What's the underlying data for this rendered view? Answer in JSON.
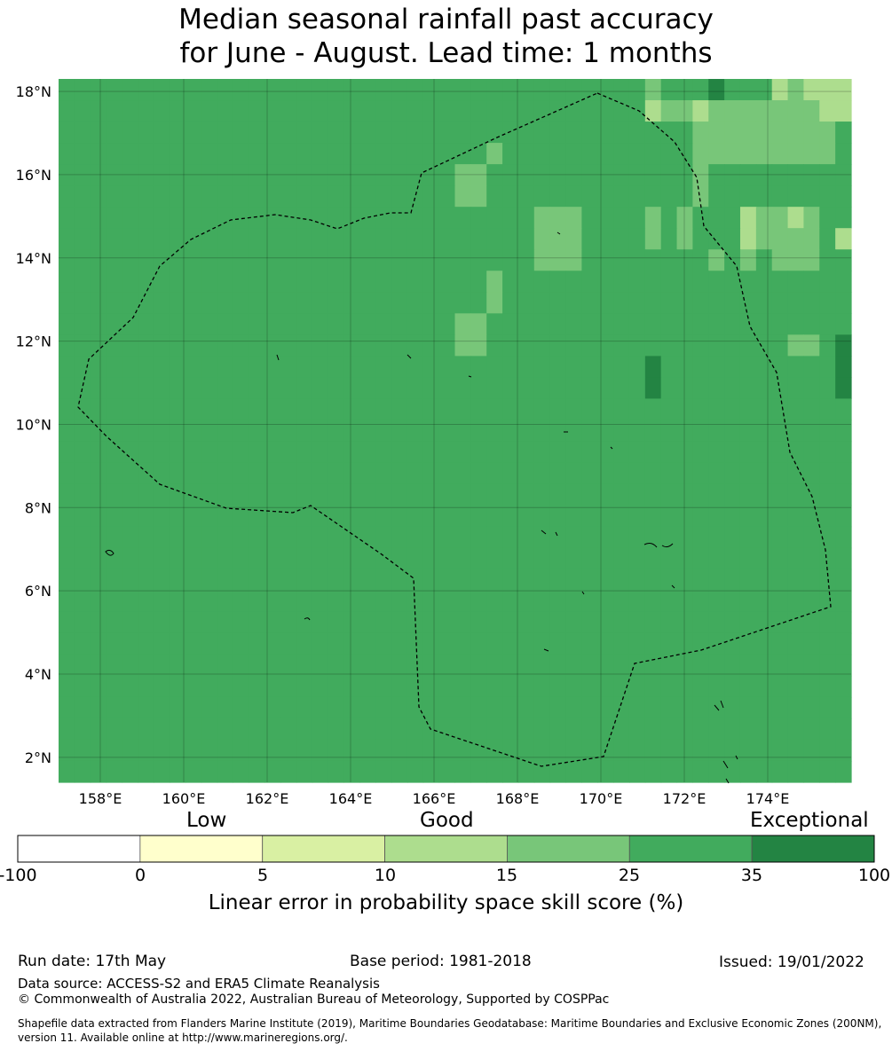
{
  "title": {
    "line1": "Median seasonal rainfall past accuracy",
    "line2": "for June - August. Lead time: 1 months"
  },
  "map": {
    "lat_labels": [
      "18°N",
      "16°N",
      "14°N",
      "12°N",
      "10°N",
      "8°N",
      "6°N",
      "4°N",
      "2°N"
    ],
    "lon_labels": [
      "158°E",
      "160°E",
      "162°E",
      "164°E",
      "166°E",
      "168°E",
      "170°E",
      "172°E",
      "174°E"
    ],
    "lat_range": [
      1.4,
      18.3
    ],
    "lon_range": [
      157.0,
      176.0
    ],
    "grid_rows": [
      "44444444444444444444444444444444444443444544423222",
      "44444444444444444444444444444444444442332333333322",
      "44444444444444444444444444444444444444443333333334",
      "44444444444444444444444444434444444444443333333334",
      "44444444444444444444444443344444444444443444444444",
      "44444444444444444444444443344444444444443444444444",
      "44444444444444444444444444444433344443434442332344",
      "44444444444444444444444444444433344443434442333342",
      "44444444444444444444444444444433344444444343433344",
      "44444444444444444444444444434444444444444444444444",
      "44444444444444444444444444434444444444444444444444",
      "44444444444444444444444443344444444444444444444444",
      "44444444444444444444444443344444444444444444443345",
      "44444444444444444444444444444444444445444444444445",
      "44444444444444444444444444444444444445444444444445",
      "44444444444444444444444444444444444444444444444444",
      "44444444444444444444444444444444444444444444444444",
      "44444444444444444444444444444444444444444444444444",
      "44444444444444444444444444444444444444444444444444",
      "44444444444444444444444444444444444444444444444444",
      "44444444444444444444444444444444444444444444444444",
      "44444444444444444444444444444444444444444444444444",
      "44444444444444444444444444444444444444444444444444",
      "44444444444444444444444444444444444444444444444444",
      "44444444444444444444444444444444444444444444444444",
      "44444444444444444444444444444444444444444444444444",
      "44444444444444444444444444444444444444444444444444",
      "44444444444444444444444444444444444444444444444444",
      "44444444444444444444444444444444444444444444444444",
      "44444444444444444444444444444444444444444444444444",
      "44444444444444444444444444444444444444444444444444",
      "44444444444444444444444444444444444444444444444444",
      "44444444444444444444444444444444444444444444444444"
    ]
  },
  "colorbar": {
    "word_low": "Low",
    "word_good": "Good",
    "word_exceptional": "Exceptional",
    "ticks": [
      "-100",
      "0",
      "5",
      "10",
      "15",
      "25",
      "35",
      "100"
    ],
    "colors": [
      "#ffffff",
      "#ffffcc",
      "#d9f0a3",
      "#addd8e",
      "#78c679",
      "#41ab5d",
      "#238443"
    ],
    "label": "Linear error in probability space skill score (%)"
  },
  "footer": {
    "run_date": "Run date: 17th May",
    "base_period": "Base period: 1981-2018",
    "issued": "Issued: 19/01/2022",
    "data_source": "Data source: ACCESS-S2 and ERA5 Climate Reanalysis",
    "copyright": "© Commonwealth of Australia 2022, Australian Bureau of Meteorology, Supported by COSPPac",
    "shapefile": "Shapefile data extracted from Flanders Marine Institute (2019), Maritime Boundaries Geodatabase: Maritime Boundaries and Exclusive Economic Zones (200NM), version 11. Available online at http://www.marineregions.org/."
  }
}
